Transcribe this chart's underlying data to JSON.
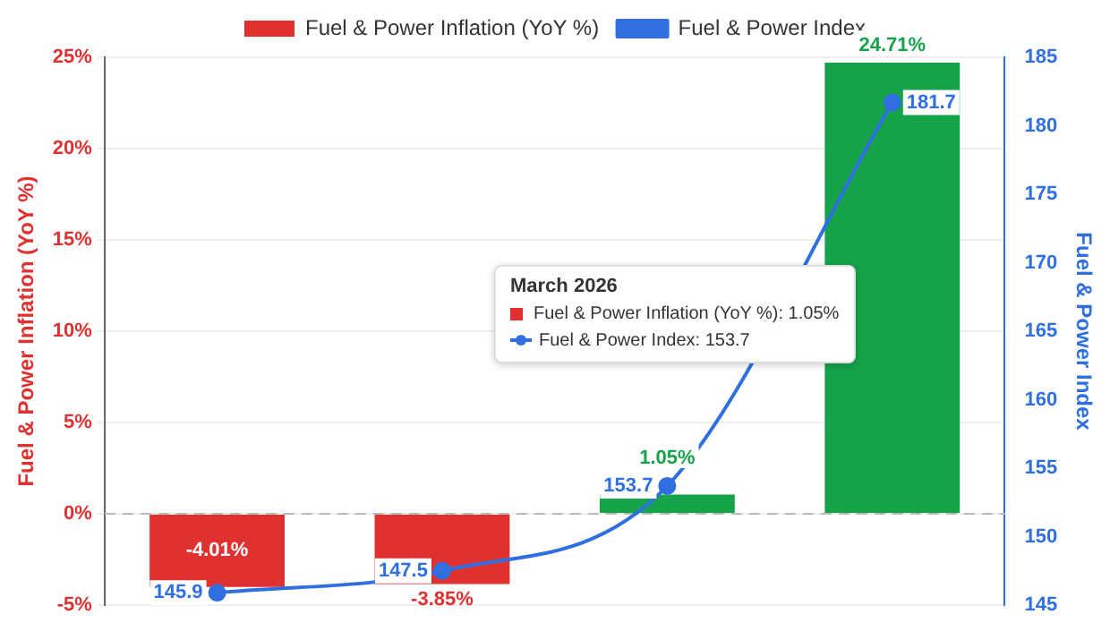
{
  "chart_data": {
    "type": "bar",
    "ylabel": "Fuel & Power Inflation (YoY %)",
    "y2label": "Fuel & Power Index",
    "categories": [
      null,
      null,
      null,
      null
    ],
    "series": [
      {
        "name": "Fuel & Power Inflation (YoY %)",
        "color": "#e03131",
        "colors": [
          "#e03131",
          "#e03131",
          "#16a34a",
          "#16a34a"
        ],
        "values": [
          -4.01,
          -3.85,
          1.05,
          24.71
        ],
        "value_labels": [
          "-4.01%",
          "-3.85%",
          "1.05%",
          "24.71%"
        ]
      },
      {
        "name": "Fuel & Power Index",
        "type": "line",
        "axis": "y2",
        "color": "#2f6fe0",
        "values": [
          145.9,
          147.5,
          153.7,
          181.7
        ],
        "value_labels": [
          "145.9",
          "147.5",
          "153.7",
          "181.7"
        ]
      }
    ],
    "ylim": [
      -5,
      25
    ],
    "yticks": [
      {
        "value": -5,
        "label": "-5%"
      },
      {
        "value": 0,
        "label": "0%"
      },
      {
        "value": 5,
        "label": "5%"
      },
      {
        "value": 10,
        "label": "10%"
      },
      {
        "value": 15,
        "label": "15%"
      },
      {
        "value": 20,
        "label": "20%"
      },
      {
        "value": 25,
        "label": "25%"
      }
    ],
    "y2lim": [
      145,
      185
    ],
    "y2ticks": [
      145,
      150,
      155,
      160,
      165,
      170,
      175,
      180,
      185
    ],
    "grid": "y",
    "legend": "top",
    "marker": "circle",
    "ref_lines": [
      {
        "axis": "y",
        "value": 0,
        "color": "#bbbbbb",
        "line_style": "dashed"
      }
    ],
    "annotations": [
      "March 2026",
      "Fuel & Power Inflation (YoY %): 1.05%",
      "Fuel & Power Index: 153.7"
    ]
  }
}
